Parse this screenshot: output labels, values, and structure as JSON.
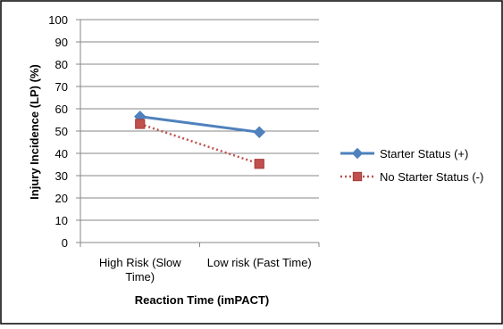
{
  "chart_data": {
    "type": "line",
    "title": "",
    "categories": [
      "High Risk (Slow Time)",
      "Low risk (Fast Time)"
    ],
    "category_lines": [
      [
        "High Risk (Slow",
        "Time)"
      ],
      [
        "Low risk (Fast Time)"
      ]
    ],
    "xlabel": "Reaction Time (imPACT)",
    "ylabel": "Injury Incidence (LP) (%)",
    "ylim": [
      0,
      100
    ],
    "yticks": [
      0,
      10,
      20,
      30,
      40,
      50,
      60,
      70,
      80,
      90,
      100
    ],
    "grid": true,
    "legend_position": "right",
    "series": [
      {
        "name": "Starter Status (+)",
        "values": [
          56.5,
          49.5
        ],
        "color": "#4f81bd",
        "line_style": "solid",
        "marker": "diamond"
      },
      {
        "name": "No Starter Status (-)",
        "values": [
          53.2,
          35.3
        ],
        "color": "#c0504d",
        "line_style": "dotted",
        "marker": "square"
      }
    ]
  }
}
